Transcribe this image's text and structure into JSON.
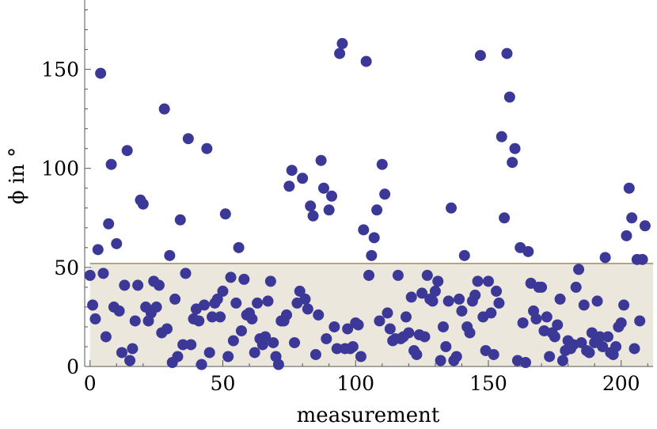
{
  "chart_data": {
    "type": "scatter",
    "title": "",
    "xlabel": "measurement",
    "ylabel": "ϕ in °",
    "xlim": [
      -2,
      212
    ],
    "ylim": [
      0,
      185
    ],
    "x_ticks": [
      0,
      50,
      100,
      150,
      200
    ],
    "y_ticks": [
      0,
      50,
      100,
      150
    ],
    "grid": false,
    "colors": {
      "points": "#3b3898",
      "band_fill": "#ebe7dc",
      "band_line": "#8b7b3c",
      "axis": "#555555"
    },
    "threshold_band": {
      "y_min": 0,
      "y_max": 52,
      "x_min": 0,
      "x_max": 212
    },
    "series": [
      {
        "values": [
          [
            0,
            46
          ],
          [
            1,
            31
          ],
          [
            2,
            24
          ],
          [
            3,
            59
          ],
          [
            4,
            148
          ],
          [
            5,
            47
          ],
          [
            6,
            15
          ],
          [
            7,
            72
          ],
          [
            8,
            102
          ],
          [
            9,
            30
          ],
          [
            10,
            62
          ],
          [
            11,
            28
          ],
          [
            12,
            7
          ],
          [
            13,
            41
          ],
          [
            14,
            109
          ],
          [
            15,
            3
          ],
          [
            16,
            9
          ],
          [
            17,
            23
          ],
          [
            18,
            41
          ],
          [
            19,
            84
          ],
          [
            20,
            82
          ],
          [
            21,
            30
          ],
          [
            22,
            23
          ],
          [
            23,
            27
          ],
          [
            24,
            43
          ],
          [
            25,
            30
          ],
          [
            26,
            41
          ],
          [
            27,
            17
          ],
          [
            28,
            130
          ],
          [
            29,
            19
          ],
          [
            30,
            56
          ],
          [
            31,
            2
          ],
          [
            32,
            34
          ],
          [
            33,
            5
          ],
          [
            34,
            74
          ],
          [
            35,
            11
          ],
          [
            36,
            47
          ],
          [
            37,
            115
          ],
          [
            38,
            11
          ],
          [
            39,
            24
          ],
          [
            40,
            29
          ],
          [
            41,
            23
          ],
          [
            42,
            1
          ],
          [
            43,
            31
          ],
          [
            44,
            110
          ],
          [
            45,
            7
          ],
          [
            46,
            25
          ],
          [
            47,
            32
          ],
          [
            48,
            34
          ],
          [
            49,
            25
          ],
          [
            50,
            38
          ],
          [
            51,
            77
          ],
          [
            52,
            5
          ],
          [
            53,
            45
          ],
          [
            54,
            13
          ],
          [
            55,
            32
          ],
          [
            56,
            60
          ],
          [
            57,
            18
          ],
          [
            58,
            44
          ],
          [
            59,
            26
          ],
          [
            60,
            27
          ],
          [
            61,
            24
          ],
          [
            62,
            7
          ],
          [
            63,
            32
          ],
          [
            64,
            14
          ],
          [
            65,
            11
          ],
          [
            66,
            15
          ],
          [
            67,
            33
          ],
          [
            68,
            43
          ],
          [
            69,
            12
          ],
          [
            70,
            5
          ],
          [
            71,
            1
          ],
          [
            72,
            23
          ],
          [
            73,
            23
          ],
          [
            74,
            26
          ],
          [
            75,
            91
          ],
          [
            76,
            99
          ],
          [
            77,
            12
          ],
          [
            78,
            32
          ],
          [
            79,
            38
          ],
          [
            80,
            95
          ],
          [
            81,
            34
          ],
          [
            82,
            29
          ],
          [
            83,
            81
          ],
          [
            84,
            76
          ],
          [
            85,
            6
          ],
          [
            86,
            26
          ],
          [
            87,
            104
          ],
          [
            88,
            90
          ],
          [
            89,
            14
          ],
          [
            90,
            79
          ],
          [
            91,
            86
          ],
          [
            92,
            20
          ],
          [
            93,
            9
          ],
          [
            94,
            158
          ],
          [
            95,
            163
          ],
          [
            96,
            9
          ],
          [
            97,
            19
          ],
          [
            98,
            9
          ],
          [
            99,
            10
          ],
          [
            100,
            22
          ],
          [
            101,
            21
          ],
          [
            102,
            5
          ],
          [
            103,
            69
          ],
          [
            104,
            154
          ],
          [
            105,
            46
          ],
          [
            106,
            56
          ],
          [
            107,
            65
          ],
          [
            108,
            79
          ],
          [
            109,
            23
          ],
          [
            110,
            102
          ],
          [
            111,
            87
          ],
          [
            112,
            27
          ],
          [
            113,
            19
          ],
          [
            114,
            13
          ],
          [
            115,
            14
          ],
          [
            116,
            46
          ],
          [
            117,
            14
          ],
          [
            118,
            15
          ],
          [
            119,
            25
          ],
          [
            120,
            17
          ],
          [
            121,
            35
          ],
          [
            122,
            8
          ],
          [
            123,
            6
          ],
          [
            124,
            16
          ],
          [
            125,
            37
          ],
          [
            126,
            15
          ],
          [
            127,
            46
          ],
          [
            128,
            34
          ],
          [
            129,
            33
          ],
          [
            130,
            38
          ],
          [
            131,
            43
          ],
          [
            132,
            3
          ],
          [
            133,
            20
          ],
          [
            134,
            10
          ],
          [
            135,
            33
          ],
          [
            136,
            80
          ],
          [
            137,
            3
          ],
          [
            138,
            5
          ],
          [
            139,
            34
          ],
          [
            140,
            28
          ],
          [
            141,
            56
          ],
          [
            142,
            20
          ],
          [
            143,
            17
          ],
          [
            144,
            33
          ],
          [
            145,
            36
          ],
          [
            146,
            43
          ],
          [
            147,
            157
          ],
          [
            148,
            25
          ],
          [
            149,
            8
          ],
          [
            150,
            43
          ],
          [
            151,
            27
          ],
          [
            152,
            6
          ],
          [
            153,
            38
          ],
          [
            154,
            32
          ],
          [
            155,
            116
          ],
          [
            156,
            75
          ],
          [
            157,
            158
          ],
          [
            158,
            136
          ],
          [
            159,
            103
          ],
          [
            160,
            110
          ],
          [
            161,
            3
          ],
          [
            162,
            60
          ],
          [
            163,
            22
          ],
          [
            164,
            2
          ],
          [
            165,
            58
          ],
          [
            166,
            42
          ],
          [
            167,
            28
          ],
          [
            168,
            24
          ],
          [
            169,
            40
          ],
          [
            170,
            40
          ],
          [
            171,
            18
          ],
          [
            172,
            25
          ],
          [
            173,
            5
          ],
          [
            174,
            17
          ],
          [
            175,
            15
          ],
          [
            176,
            21
          ],
          [
            177,
            34
          ],
          [
            178,
            3
          ],
          [
            179,
            8
          ],
          [
            180,
            13
          ],
          [
            181,
            9
          ],
          [
            182,
            11
          ],
          [
            183,
            40
          ],
          [
            184,
            49
          ],
          [
            185,
            12
          ],
          [
            186,
            31
          ],
          [
            187,
            8
          ],
          [
            188,
            7
          ],
          [
            189,
            17
          ],
          [
            190,
            12
          ],
          [
            191,
            33
          ],
          [
            192,
            15
          ],
          [
            193,
            10
          ],
          [
            194,
            55
          ],
          [
            195,
            15
          ],
          [
            196,
            7
          ],
          [
            197,
            6
          ],
          [
            198,
            10
          ],
          [
            199,
            20
          ],
          [
            200,
            22
          ],
          [
            201,
            31
          ],
          [
            202,
            66
          ],
          [
            203,
            90
          ],
          [
            204,
            75
          ],
          [
            205,
            9
          ],
          [
            206,
            54
          ],
          [
            207,
            23
          ],
          [
            208,
            54
          ],
          [
            209,
            71
          ]
        ]
      }
    ]
  }
}
